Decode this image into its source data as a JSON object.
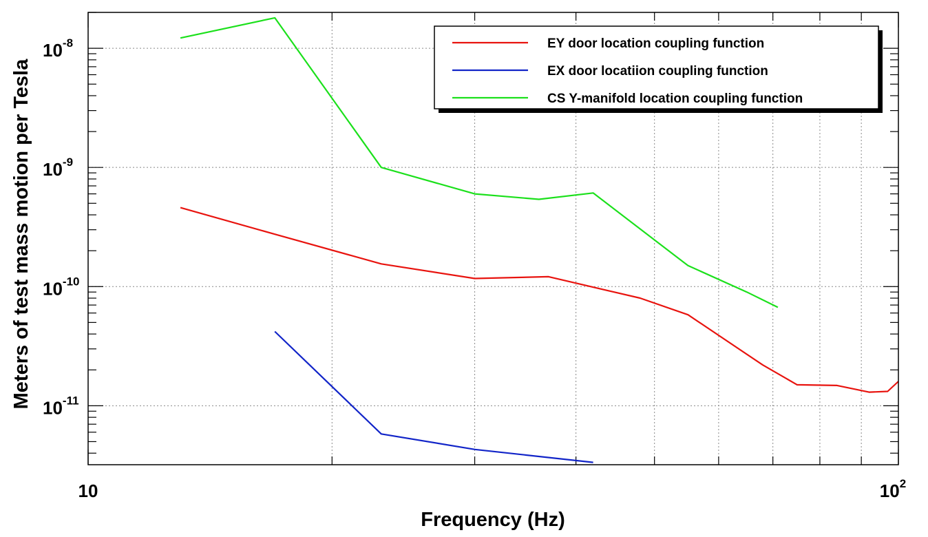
{
  "chart_data": {
    "type": "line",
    "title": "",
    "xlabel": "Frequency (Hz)",
    "ylabel": "Meters of test mass motion per Tesla",
    "x_scale": "log",
    "y_scale": "log",
    "xlim": [
      10,
      100
    ],
    "ylim": [
      3.2e-12,
      2e-08
    ],
    "grid": true,
    "legend_position": "top-right",
    "x_tick_labels": [
      {
        "value": 10,
        "base": "10",
        "exp": ""
      },
      {
        "value": 100,
        "base": "10",
        "exp": "2"
      }
    ],
    "y_tick_labels": [
      {
        "value": 1e-11,
        "base": "10",
        "exp": "-11"
      },
      {
        "value": 1e-10,
        "base": "10",
        "exp": "-10"
      },
      {
        "value": 1e-09,
        "base": "10",
        "exp": "-9"
      },
      {
        "value": 1e-08,
        "base": "10",
        "exp": "-8"
      }
    ],
    "series": [
      {
        "name": "EY door location coupling function",
        "color": "#e8130e",
        "x": [
          13,
          17,
          23,
          30,
          37,
          48,
          55,
          68,
          75,
          84,
          92,
          97,
          100
        ],
        "y": [
          4.6e-10,
          2.75e-10,
          1.55e-10,
          1.17e-10,
          1.21e-10,
          8e-11,
          5.8e-11,
          2.2e-11,
          1.5e-11,
          1.48e-11,
          1.3e-11,
          1.32e-11,
          1.6e-11
        ]
      },
      {
        "name": "EX door locatiion coupling function",
        "color": "#1124c8",
        "x": [
          17,
          23,
          30,
          42
        ],
        "y": [
          4.2e-11,
          5.8e-12,
          4.3e-12,
          3.35e-12
        ]
      },
      {
        "name": "CS Y-manifold location coupling function",
        "color": "#1be01b",
        "x": [
          13,
          17,
          23,
          30,
          36,
          42,
          55,
          65,
          71
        ],
        "y": [
          1.22e-08,
          1.8e-08,
          1e-09,
          6e-10,
          5.4e-10,
          6.1e-10,
          1.5e-10,
          9e-11,
          6.7e-11
        ]
      }
    ]
  }
}
